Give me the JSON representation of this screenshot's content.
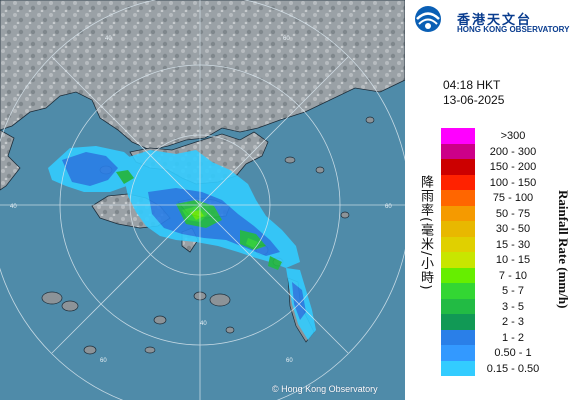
{
  "header": {
    "org_name_cn": "香港天文台",
    "org_name_en": "HONG KONG OBSERVATORY",
    "logo_icon": "hko-logo-icon"
  },
  "timestamp": {
    "time": "04:18 HKT",
    "date": "13-06-2025"
  },
  "map": {
    "copyright": "© Hong Kong Observatory",
    "range_ring_labels": [
      "40",
      "60",
      "40",
      "60",
      "60",
      "40",
      "60"
    ]
  },
  "legend": {
    "title_cn": "降雨率(毫米/小時)",
    "title_en": "Rainfall Rate (mm/h)",
    "items": [
      {
        "label": ">300",
        "color": "#ff00ff"
      },
      {
        "label": "200 - 300",
        "color": "#cc0088"
      },
      {
        "label": "150 - 200",
        "color": "#cc0000"
      },
      {
        "label": "100 - 150",
        "color": "#ff2200"
      },
      {
        "label": "75 - 100",
        "color": "#ff6600"
      },
      {
        "label": "50 - 75",
        "color": "#f59a00"
      },
      {
        "label": "30 - 50",
        "color": "#e8b800"
      },
      {
        "label": "15 - 30",
        "color": "#e0d000"
      },
      {
        "label": "10 - 15",
        "color": "#c8e600"
      },
      {
        "label": "7 - 10",
        "color": "#66ee00"
      },
      {
        "label": "5 - 7",
        "color": "#33d633"
      },
      {
        "label": "3 - 5",
        "color": "#22bb44"
      },
      {
        "label": "2 - 3",
        "color": "#119955"
      },
      {
        "label": "1 - 2",
        "color": "#2a7fe8"
      },
      {
        "label": "0.50 - 1",
        "color": "#3399ff"
      },
      {
        "label": "0.15 - 0.50",
        "color": "#33ccff"
      }
    ]
  }
}
